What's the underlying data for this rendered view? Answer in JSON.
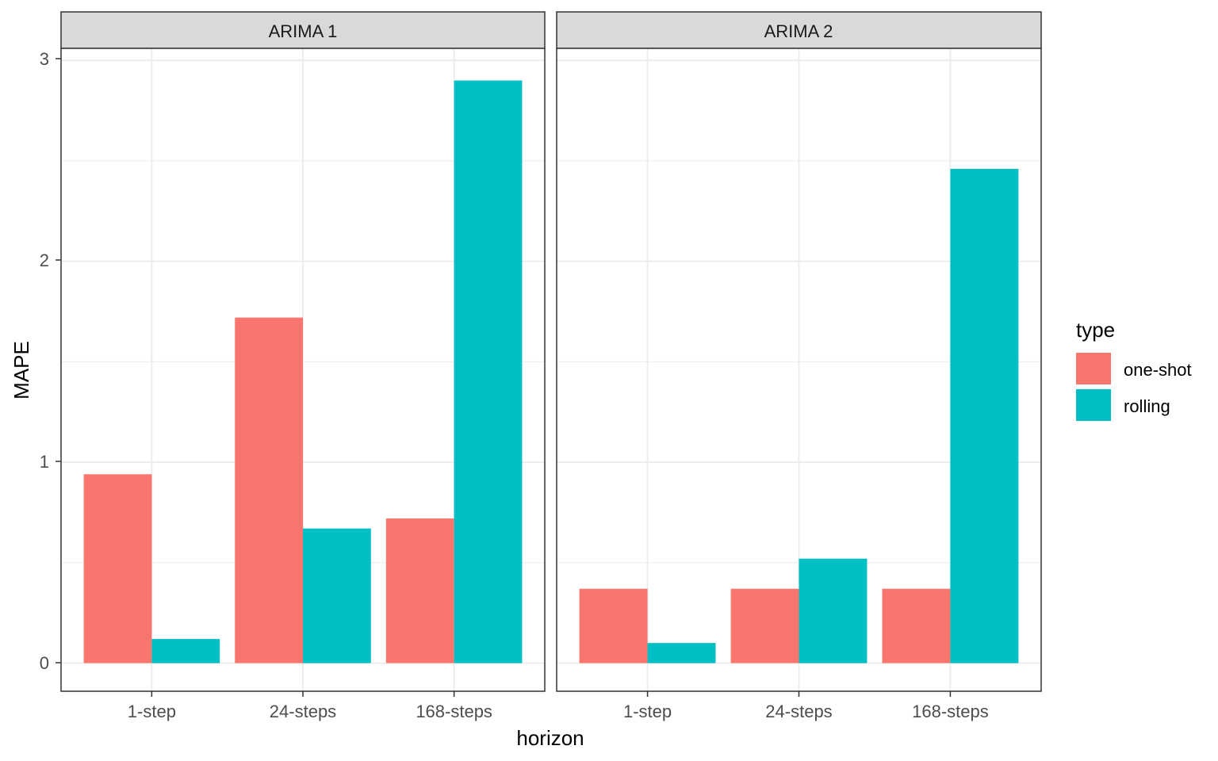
{
  "chart_data": {
    "type": "bar",
    "xlabel": "horizon",
    "ylabel": "MAPE",
    "ylim": [
      -0.14,
      3.06
    ],
    "yticks": [
      "0",
      "1",
      "2",
      "3"
    ],
    "ytick_values": [
      0,
      1,
      2,
      3
    ],
    "categories": [
      "1-step",
      "24-steps",
      "168-steps"
    ],
    "grid": true,
    "legend": {
      "title": "type",
      "position": "right",
      "entries": [
        {
          "name": "one-shot",
          "color": "#F8766D"
        },
        {
          "name": "rolling",
          "color": "#00BFC4"
        }
      ]
    },
    "panels": [
      {
        "title": "ARIMA 1",
        "series": [
          {
            "name": "one-shot",
            "values": [
              0.94,
              1.72,
              0.72
            ]
          },
          {
            "name": "rolling",
            "values": [
              0.12,
              0.67,
              2.9
            ]
          }
        ]
      },
      {
        "title": "ARIMA 2",
        "series": [
          {
            "name": "one-shot",
            "values": [
              0.37,
              0.37,
              0.37
            ]
          },
          {
            "name": "rolling",
            "values": [
              0.1,
              0.52,
              2.46
            ]
          }
        ]
      }
    ]
  }
}
